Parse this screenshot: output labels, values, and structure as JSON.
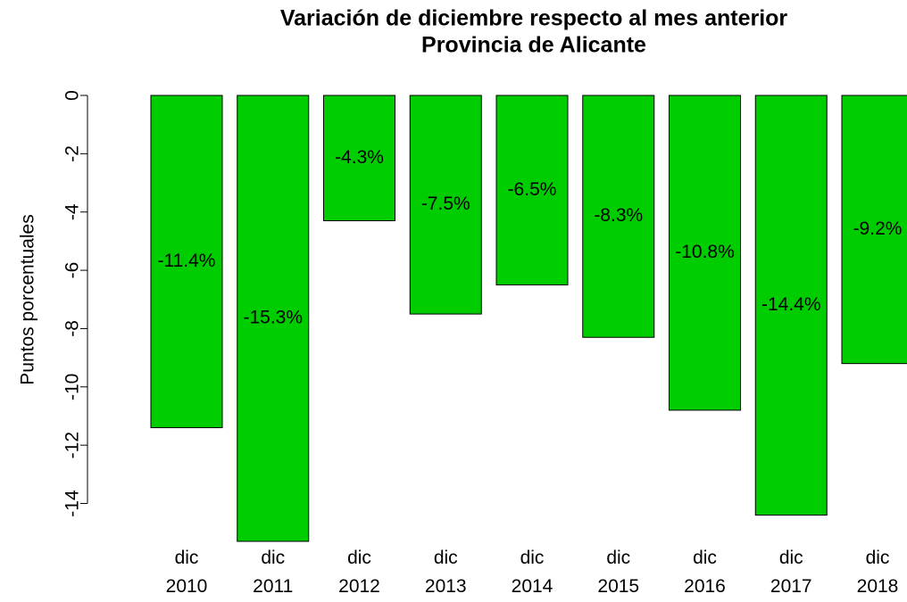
{
  "chart_data": {
    "type": "bar",
    "title": "Variación de diciembre respecto al mes anterior",
    "subtitle": "Provincia de Alicante",
    "y_label": "Puntos porcentuales",
    "categories": [
      "dic\n2010",
      "dic\n2011",
      "dic\n2012",
      "dic\n2013",
      "dic\n2014",
      "dic\n2015",
      "dic\n2016",
      "dic\n2017",
      "dic\n2018"
    ],
    "values": [
      -11.4,
      -15.3,
      -4.3,
      -7.5,
      -6.5,
      -8.3,
      -10.8,
      -14.4,
      -9.2
    ],
    "value_labels": [
      "-11.4%",
      "-15.3%",
      "-4.3%",
      "-7.5%",
      "-6.5%",
      "-8.3%",
      "-10.8%",
      "-14.4%",
      "-9.2%"
    ],
    "color": "#00cd00",
    "ylim": [
      -15.3,
      0
    ],
    "yticks": [
      0,
      -2,
      -4,
      -6,
      -8,
      -10,
      -12,
      -14
    ]
  }
}
